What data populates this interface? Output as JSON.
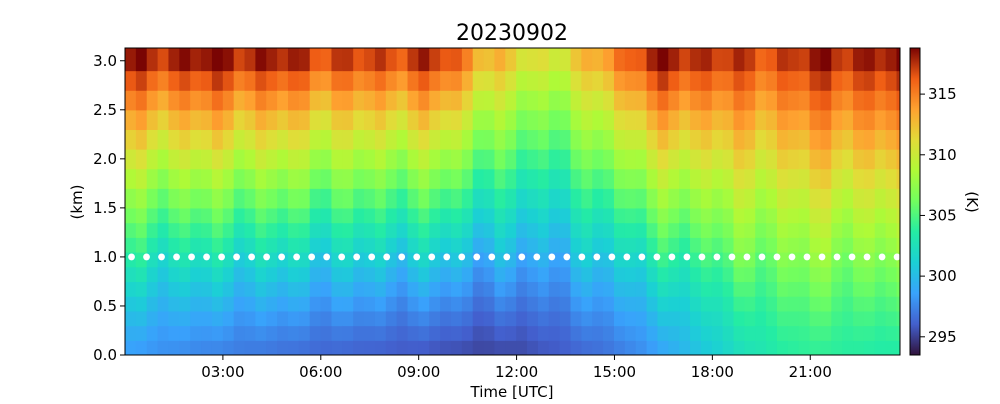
{
  "chart_data": {
    "type": "heatmap",
    "title": "20230902",
    "xlabel": "Time [UTC]",
    "ylabel": "(km)",
    "colorbar_label": "(K)",
    "colormap": "turbo",
    "x_ticks": [
      "03:00",
      "06:00",
      "09:00",
      "12:00",
      "15:00",
      "18:00",
      "21:00"
    ],
    "x_tick_hours": [
      3,
      6,
      9,
      12,
      15,
      18,
      21
    ],
    "x_range_hours": [
      0,
      23.75
    ],
    "y_ticks": [
      "0.0",
      "0.5",
      "1.0",
      "1.5",
      "2.0",
      "2.5",
      "3.0"
    ],
    "y_tick_values": [
      0.0,
      0.5,
      1.0,
      1.5,
      2.0,
      2.5,
      3.0
    ],
    "ylim": [
      0,
      3.13
    ],
    "colorbar_ticks": [
      "295",
      "300",
      "305",
      "310",
      "315"
    ],
    "colorbar_tick_values": [
      295,
      300,
      305,
      310,
      315
    ],
    "clim": [
      293.5,
      318.8
    ],
    "time_step_hours": 0.333,
    "height_bins_km": [
      0.0,
      0.15,
      0.3,
      0.45,
      0.6,
      0.75,
      0.9,
      1.05,
      1.2,
      1.35,
      1.5,
      1.7,
      1.9,
      2.1,
      2.3,
      2.5,
      2.7,
      2.9
    ],
    "surface_temperature_by_hour_K": [
      298.5,
      298.0,
      297.6,
      297.3,
      297.0,
      296.7,
      296.4,
      296.2,
      296.0,
      295.8,
      295.5,
      295.2,
      295.3,
      295.8,
      296.3,
      297.0,
      298.0,
      299.5,
      301.0,
      302.5,
      303.5,
      304.0,
      303.8,
      303.5
    ],
    "top_temperature_by_hour_K": [
      317.5,
      317.8,
      318.0,
      318.2,
      317.8,
      317.5,
      317.0,
      316.5,
      316.8,
      317.2,
      316.5,
      313.0,
      311.0,
      310.5,
      311.5,
      315.0,
      317.5,
      317.8,
      317.5,
      316.5,
      317.0,
      317.5,
      318.0,
      317.8
    ],
    "marker_height_km": 1.0,
    "marker_color": "#ffffff"
  }
}
